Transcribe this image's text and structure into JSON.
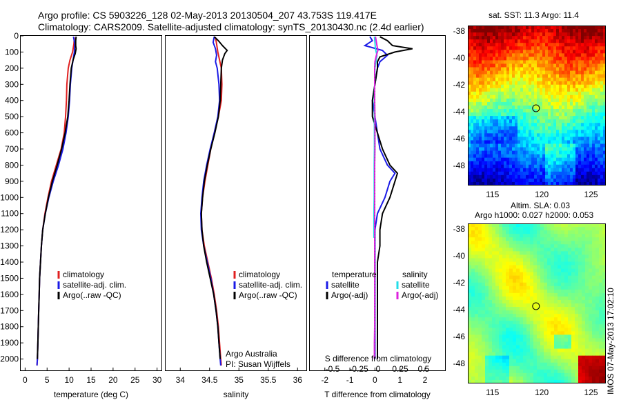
{
  "header": {
    "line1": "Argo profile: CS 5903226_128 02-May-2013 20130504_207 43.753S 119.417E",
    "line2": "Climatology: CARS2009. Satellite-adjusted climatology: synTS_20130430.nc (2.4d earlier)"
  },
  "colors": {
    "climatology": "#e02020",
    "satellite": "#1a1ae6",
    "argo": "#000000",
    "satellite_salinity": "#22dde8",
    "argo_salinity": "#dd22dd"
  },
  "chart_data": [
    {
      "type": "line",
      "panel": "temperature",
      "xlabel": "temperature (deg C)",
      "ylim": [
        2070,
        0
      ],
      "xlim": [
        -1,
        31
      ],
      "xticks": [
        0,
        5,
        10,
        15,
        20,
        25,
        30
      ],
      "yticks": [
        0,
        100,
        200,
        300,
        400,
        500,
        600,
        700,
        800,
        900,
        1000,
        1100,
        1200,
        1300,
        1400,
        1500,
        1600,
        1700,
        1800,
        1900,
        2000
      ],
      "legend": [
        "climatology",
        "satellite-adj. clim.",
        "Argo(..raw -QC)"
      ],
      "legend_position": "lower-center",
      "series": [
        {
          "name": "climatology",
          "color_key": "climatology",
          "depth": [
            10,
            50,
            100,
            150,
            200,
            300,
            400,
            500,
            600,
            700,
            800,
            900,
            1000,
            1100,
            1200,
            1300,
            1400,
            1500,
            1600,
            1700,
            1800,
            1900,
            2000,
            2040
          ],
          "values": [
            11.2,
            11.1,
            10.8,
            10.2,
            9.8,
            9.5,
            9.4,
            9.2,
            8.9,
            8.2,
            7.1,
            6.0,
            5.2,
            4.5,
            4.0,
            3.7,
            3.5,
            3.3,
            3.2,
            3.1,
            3.0,
            2.9,
            2.8,
            2.7
          ]
        },
        {
          "name": "satellite-adj. clim.",
          "color_key": "satellite",
          "depth": [
            5,
            50,
            100,
            150,
            200,
            300,
            400,
            500,
            600,
            700,
            800,
            900,
            1000,
            1100,
            1200,
            1300,
            1400,
            1500,
            1600,
            1700,
            1800,
            1900,
            2000,
            2040
          ],
          "values": [
            11.0,
            11.3,
            11.2,
            10.9,
            10.6,
            10.3,
            10.1,
            9.8,
            9.3,
            8.6,
            7.6,
            6.4,
            5.4,
            4.6,
            4.0,
            3.7,
            3.5,
            3.3,
            3.2,
            3.1,
            3.0,
            2.9,
            2.8,
            2.7
          ]
        },
        {
          "name": "Argo(..raw -QC)",
          "color_key": "argo",
          "depth": [
            5,
            30,
            60,
            80,
            110,
            150,
            200,
            300,
            400,
            500,
            600,
            700,
            800,
            900,
            1000,
            1100,
            1200,
            1300,
            1400,
            1500,
            1600,
            1700,
            1800,
            1900,
            2000
          ],
          "values": [
            11.6,
            11.5,
            11.5,
            11.6,
            11.4,
            10.9,
            10.5,
            10.2,
            10.0,
            9.7,
            9.1,
            8.3,
            7.3,
            6.2,
            5.3,
            4.6,
            4.0,
            3.7,
            3.5,
            3.3,
            3.2,
            3.1,
            3.0,
            2.9,
            2.8
          ]
        }
      ]
    },
    {
      "type": "line",
      "panel": "salinity",
      "xlabel": "salinity",
      "ylim": [
        2070,
        0
      ],
      "xlim": [
        33.75,
        36.15
      ],
      "xticks": [
        34,
        34.5,
        35,
        35.5,
        36
      ],
      "legend": [
        "climatology",
        "satellite-adj. clim.",
        "Argo(..raw -QC)"
      ],
      "legend_position": "lower-right",
      "annotation": [
        "Argo Australia",
        "PI: Susan Wijffels"
      ],
      "series": [
        {
          "name": "climatology",
          "color_key": "climatology",
          "depth": [
            10,
            50,
            100,
            150,
            200,
            300,
            400,
            500,
            600,
            700,
            800,
            900,
            1000,
            1100,
            1200,
            1300,
            1400,
            1500,
            1600,
            1700,
            1800,
            1900,
            2000,
            2040
          ],
          "values": [
            34.6,
            34.62,
            34.64,
            34.67,
            34.7,
            34.71,
            34.7,
            34.65,
            34.58,
            34.52,
            34.47,
            34.42,
            34.38,
            34.36,
            34.37,
            34.41,
            34.47,
            34.53,
            34.58,
            34.62,
            34.65,
            34.67,
            34.69,
            34.7
          ]
        },
        {
          "name": "satellite-adj. clim.",
          "color_key": "satellite",
          "depth": [
            5,
            40,
            80,
            120,
            160,
            200,
            300,
            400,
            500,
            600,
            700,
            800,
            900,
            1000,
            1100,
            1200,
            1300,
            1400,
            1500,
            1600,
            1700,
            1800,
            1900,
            2000,
            2040
          ],
          "values": [
            34.58,
            34.56,
            34.6,
            34.62,
            34.6,
            34.63,
            34.66,
            34.67,
            34.64,
            34.58,
            34.51,
            34.45,
            34.4,
            34.37,
            34.35,
            34.36,
            34.4,
            34.46,
            34.52,
            34.57,
            34.61,
            34.64,
            34.66,
            34.68,
            34.69
          ]
        },
        {
          "name": "Argo(..raw -QC)",
          "color_key": "argo",
          "depth": [
            5,
            30,
            60,
            90,
            110,
            150,
            200,
            300,
            400,
            500,
            600,
            700,
            800,
            900,
            1000,
            1100,
            1200,
            1300,
            1400,
            1500,
            1600,
            1700,
            1800,
            1900,
            2000
          ],
          "values": [
            34.58,
            34.65,
            34.72,
            34.8,
            34.76,
            34.72,
            34.7,
            34.69,
            34.68,
            34.65,
            34.59,
            34.52,
            34.46,
            34.41,
            34.38,
            34.36,
            34.37,
            34.4,
            34.45,
            34.51,
            34.57,
            34.61,
            34.64,
            34.66,
            34.68
          ]
        }
      ]
    },
    {
      "type": "line",
      "panel": "difference",
      "xlabel": "T difference from climatology",
      "xlabel_top": "S difference from climatology",
      "ylim": [
        2070,
        0
      ],
      "xlim": [
        -2.6,
        2.8
      ],
      "xticks": [
        -2,
        -1,
        0,
        1,
        2
      ],
      "s_xticks": [
        "-0.5",
        "-0.25",
        "0",
        "0.25",
        "0.5"
      ],
      "legend_temperature_title": "temperature",
      "legend_salinity_title": "salinity",
      "legend_temperature": [
        "satellite",
        "Argo(-adj)"
      ],
      "legend_salinity": [
        "satellite",
        "Argo(-adj)"
      ],
      "series": [
        {
          "name": "temperature satellite",
          "color_key": "satellite",
          "depth": [
            5,
            30,
            60,
            90,
            120,
            160,
            200,
            300,
            400,
            500,
            600,
            700,
            800,
            850,
            900,
            1000,
            1100,
            1200,
            1300,
            1400,
            1500,
            1600,
            1700,
            1800,
            1900,
            2000
          ],
          "values": [
            -0.2,
            -0.1,
            -0.4,
            0.3,
            0.5,
            0.2,
            0.1,
            0.0,
            -0.1,
            0.0,
            0.1,
            0.2,
            0.5,
            0.8,
            0.6,
            0.4,
            0.1,
            0.0,
            0.0,
            0.0,
            0.0,
            0.0,
            0.0,
            0.0,
            0.0,
            0.0
          ]
        },
        {
          "name": "temperature Argo(-adj)",
          "color_key": "argo",
          "depth": [
            5,
            30,
            60,
            80,
            100,
            130,
            160,
            200,
            300,
            400,
            500,
            600,
            700,
            800,
            850,
            900,
            1000,
            1100,
            1200,
            1300,
            1400,
            1500,
            1600,
            1700,
            1800,
            1900,
            2000
          ],
          "values": [
            0.2,
            0.5,
            0.7,
            1.5,
            0.8,
            0.2,
            0.1,
            0.1,
            0.0,
            -0.1,
            -0.1,
            0.1,
            0.3,
            0.6,
            0.9,
            0.8,
            0.6,
            0.3,
            0.2,
            0.2,
            0.1,
            0.1,
            0.1,
            0.1,
            0.1,
            0.1,
            0.1
          ]
        },
        {
          "name": "salinity satellite",
          "color_key": "satellite_salinity",
          "depth": [
            5,
            40,
            80,
            120,
            160,
            200,
            300,
            400,
            500,
            600,
            700,
            800,
            900,
            1000,
            1100,
            1200,
            1250
          ],
          "values": [
            -0.02,
            0.0,
            0.02,
            0.08,
            0.04,
            0.0,
            -0.01,
            -0.02,
            -0.02,
            -0.02,
            -0.02,
            -0.03,
            -0.03,
            -0.03,
            -0.04,
            -0.04,
            -0.04
          ]
        },
        {
          "name": "salinity Argo(-adj)",
          "color_key": "argo_salinity",
          "depth": [
            5,
            30,
            60,
            90,
            120,
            160,
            200,
            300,
            400,
            500,
            600,
            700,
            800,
            900,
            1000,
            1100,
            1200,
            1300,
            1400,
            1500,
            1600,
            1700,
            1800,
            1900,
            2000
          ],
          "values": [
            0.02,
            0.05,
            0.08,
            0.12,
            0.06,
            0.0,
            -0.01,
            -0.01,
            -0.01,
            0.0,
            0.0,
            0.0,
            -0.01,
            -0.01,
            -0.01,
            -0.01,
            -0.01,
            -0.01,
            -0.01,
            -0.01,
            -0.01,
            -0.01,
            -0.01,
            -0.02,
            -0.02
          ]
        }
      ]
    },
    {
      "type": "heatmap",
      "panel": "sst-map",
      "title": "sat. SST: 11.3  Argo: 11.4",
      "xticks": [
        115,
        120,
        125
      ],
      "yticks": [
        -38,
        -40,
        -42,
        -44,
        -46,
        -48
      ],
      "xlim": [
        112.5,
        126.5
      ],
      "ylim": [
        -49.5,
        -37.6
      ],
      "marker": {
        "lon": 119.417,
        "lat": -43.753
      }
    },
    {
      "type": "heatmap",
      "panel": "sla-map",
      "title_line1": "Altim. SLA: 0.03",
      "title_line2": "Argo h1000: 0.027  h2000: 0.053",
      "xticks": [
        115,
        120,
        125
      ],
      "yticks": [
        -38,
        -40,
        -42,
        -44,
        -46,
        -48
      ],
      "xlim": [
        112.5,
        126.5
      ],
      "ylim": [
        -49.5,
        -37.6
      ],
      "marker": {
        "lon": 119.417,
        "lat": -43.753
      }
    }
  ],
  "footer": {
    "stamp": "IMOS 07-May-2013 17:02:10"
  }
}
